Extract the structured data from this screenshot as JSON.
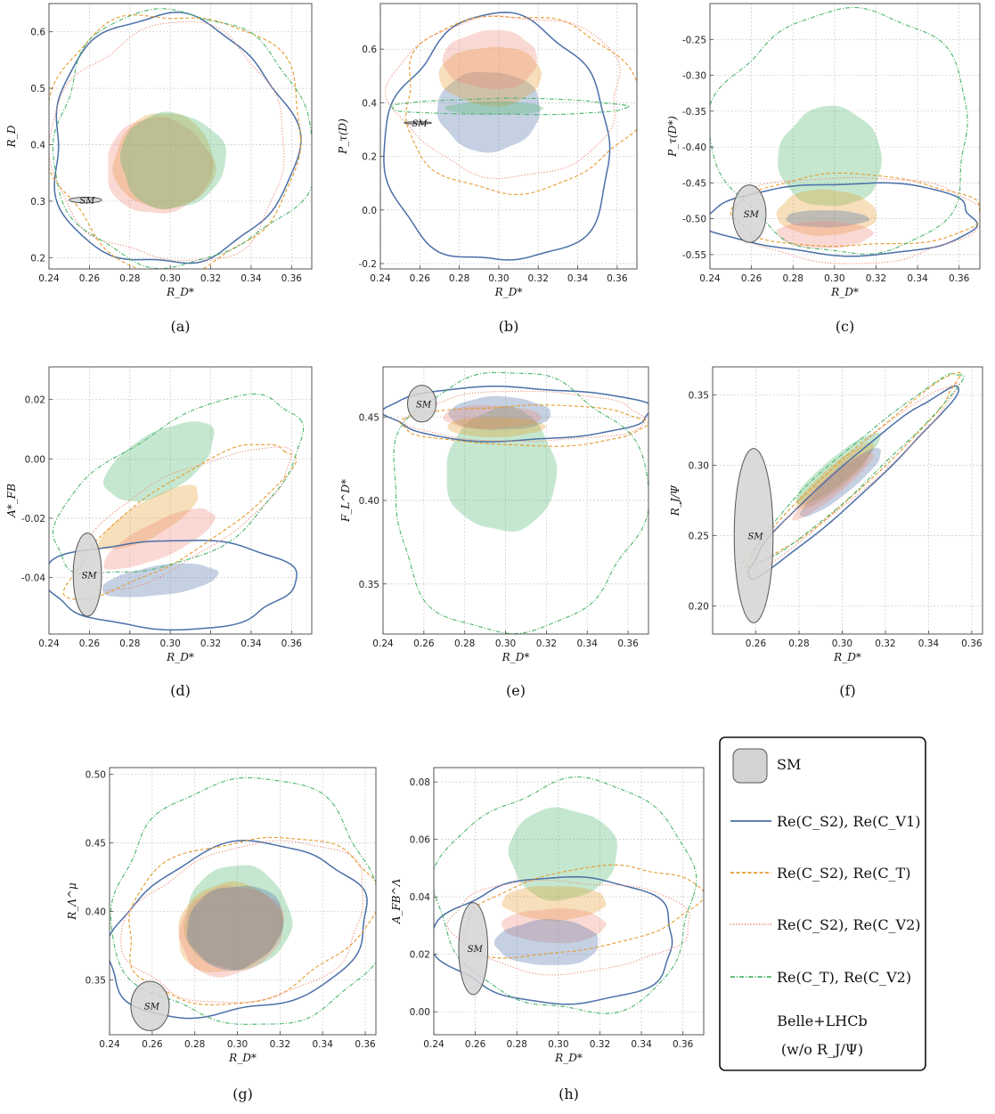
{
  "colors": {
    "sm_fill": "#d3d3d3",
    "sm_stroke": "#555555",
    "cs2_cv1": "#4a6fa8",
    "cs2_ct": "#e59a2c",
    "cs2_cv2": "#f08a78",
    "ct_cv2": "#4cb56a",
    "grid": "#c9c9c9"
  },
  "legend": {
    "items": [
      {
        "key": "sm",
        "label": "SM"
      },
      {
        "key": "cs2_cv1",
        "label": "Re(C_S2), Re(C_V1)",
        "style": "solid"
      },
      {
        "key": "cs2_ct",
        "label": "Re(C_S2), Re(C_T)",
        "style": "dashed"
      },
      {
        "key": "cs2_cv2",
        "label": "Re(C_S2), Re(C_V2)",
        "style": "dotted"
      },
      {
        "key": "ct_cv2",
        "label": "Re(C_T), Re(C_V2)",
        "style": "dashdot"
      }
    ],
    "footer_line1": "Belle+LHCb",
    "footer_line2": "(w/o R_J/Ψ)"
  },
  "chart_data": [
    {
      "id": "a",
      "type": "scatter",
      "caption": "(a)",
      "xlabel": "R_D*",
      "ylabel": "R_D",
      "xlim": [
        0.24,
        0.37
      ],
      "ylim": [
        0.18,
        0.65
      ],
      "xticks": [
        0.24,
        0.26,
        0.28,
        0.3,
        0.32,
        0.34,
        0.36
      ],
      "yticks": [
        0.2,
        0.3,
        0.4,
        0.5,
        0.6
      ],
      "sm": {
        "x": 0.258,
        "y": 0.302,
        "rx": 0.008,
        "ry": 0.005
      },
      "regions": [
        {
          "series": "cs2_ct",
          "x": 0.297,
          "y": 0.37,
          "rx": 0.025,
          "ry": 0.085
        },
        {
          "series": "cs2_cv2",
          "x": 0.294,
          "y": 0.362,
          "rx": 0.026,
          "ry": 0.085
        },
        {
          "series": "ct_cv2",
          "x": 0.301,
          "y": 0.372,
          "rx": 0.026,
          "ry": 0.085
        }
      ],
      "contours": [
        {
          "series": "cs2_cv1",
          "x": 0.3,
          "y": 0.405,
          "rx": 0.06,
          "ry": 0.22
        },
        {
          "series": "cs2_ct",
          "x": 0.302,
          "y": 0.41,
          "rx": 0.063,
          "ry": 0.23
        },
        {
          "series": "cs2_cv2",
          "x": 0.3,
          "y": 0.4,
          "rx": 0.058,
          "ry": 0.21
        },
        {
          "series": "ct_cv2",
          "x": 0.305,
          "y": 0.41,
          "rx": 0.064,
          "ry": 0.225
        }
      ]
    },
    {
      "id": "b",
      "type": "scatter",
      "caption": "(b)",
      "xlabel": "R_D*",
      "ylabel": "P_τ(D)",
      "xlim": [
        0.24,
        0.37
      ],
      "ylim": [
        -0.22,
        0.77
      ],
      "xticks": [
        0.24,
        0.26,
        0.28,
        0.3,
        0.32,
        0.34,
        0.36
      ],
      "yticks": [
        -0.2,
        0.0,
        0.2,
        0.4,
        0.6
      ],
      "sm": {
        "x": 0.259,
        "y": 0.325,
        "rx": 0.007,
        "ry": 0.004
      },
      "regions": [
        {
          "series": "cs2_cv1",
          "x": 0.295,
          "y": 0.37,
          "rx": 0.026,
          "ry": 0.15
        },
        {
          "series": "cs2_ct",
          "x": 0.296,
          "y": 0.5,
          "rx": 0.026,
          "ry": 0.11
        },
        {
          "series": "cs2_cv2",
          "x": 0.296,
          "y": 0.56,
          "rx": 0.024,
          "ry": 0.11
        },
        {
          "series": "ct_cv2",
          "x": 0.298,
          "y": 0.38,
          "rx": 0.025,
          "ry": 0.025
        }
      ],
      "contours": [
        {
          "series": "cs2_cv1",
          "x": 0.3,
          "y": 0.25,
          "rx": 0.057,
          "ry": 0.46
        },
        {
          "series": "cs2_ct",
          "x": 0.31,
          "y": 0.4,
          "rx": 0.06,
          "ry": 0.33
        },
        {
          "series": "cs2_cv2",
          "x": 0.305,
          "y": 0.43,
          "rx": 0.058,
          "ry": 0.3
        },
        {
          "series": "ct_cv2",
          "x": 0.305,
          "y": 0.385,
          "rx": 0.06,
          "ry": 0.03
        }
      ]
    },
    {
      "id": "c",
      "type": "scatter",
      "caption": "(c)",
      "xlabel": "R_D*",
      "ylabel": "P_τ(D*)",
      "xlim": [
        0.24,
        0.37
      ],
      "ylim": [
        -0.57,
        -0.2
      ],
      "xticks": [
        0.24,
        0.26,
        0.28,
        0.3,
        0.32,
        0.34,
        0.36
      ],
      "yticks": [
        -0.55,
        -0.5,
        -0.45,
        -0.4,
        -0.35,
        -0.3,
        -0.25
      ],
      "sm": {
        "x": 0.259,
        "y": -0.493,
        "rx": 0.008,
        "ry": 0.04
      },
      "regions": [
        {
          "series": "ct_cv2",
          "x": 0.298,
          "y": -0.415,
          "rx": 0.025,
          "ry": 0.07
        },
        {
          "series": "cs2_ct",
          "x": 0.296,
          "y": -0.492,
          "rx": 0.024,
          "ry": 0.032
        },
        {
          "series": "cs2_cv1",
          "x": 0.296,
          "y": -0.5,
          "rx": 0.02,
          "ry": 0.012
        },
        {
          "series": "cs2_cv2",
          "x": 0.295,
          "y": -0.522,
          "rx": 0.023,
          "ry": 0.019
        }
      ],
      "contours": [
        {
          "series": "cs2_cv1",
          "x": 0.305,
          "y": -0.5,
          "rx": 0.065,
          "ry": 0.05
        },
        {
          "series": "cs2_ct",
          "x": 0.31,
          "y": -0.49,
          "rx": 0.06,
          "ry": 0.05
        },
        {
          "series": "cs2_cv2",
          "x": 0.31,
          "y": -0.5,
          "rx": 0.06,
          "ry": 0.06
        },
        {
          "series": "ct_cv2",
          "x": 0.305,
          "y": -0.38,
          "rx": 0.062,
          "ry": 0.17
        }
      ]
    },
    {
      "id": "d",
      "type": "scatter",
      "caption": "(d)",
      "xlabel": "R_D*",
      "ylabel": "A*_FB",
      "xlim": [
        0.24,
        0.37
      ],
      "ylim": [
        -0.059,
        0.031
      ],
      "xticks": [
        0.24,
        0.26,
        0.28,
        0.3,
        0.32,
        0.34,
        0.36
      ],
      "yticks": [
        -0.04,
        -0.02,
        0.0,
        0.02
      ],
      "sm": {
        "x": 0.259,
        "y": -0.039,
        "rx": 0.007,
        "ry": 0.014
      },
      "regions": [
        {
          "series": "ct_cv2",
          "x": 0.295,
          "y": -0.001,
          "rx": 0.03,
          "ry": 0.01,
          "angle": -30
        },
        {
          "series": "cs2_ct",
          "x": 0.29,
          "y": -0.02,
          "rx": 0.028,
          "ry": 0.006,
          "angle": -30
        },
        {
          "series": "cs2_cv2",
          "x": 0.295,
          "y": -0.027,
          "rx": 0.03,
          "ry": 0.006,
          "angle": -25
        },
        {
          "series": "cs2_cv1",
          "x": 0.295,
          "y": -0.041,
          "rx": 0.029,
          "ry": 0.005,
          "angle": -8
        }
      ],
      "contours": [
        {
          "series": "cs2_cv1",
          "x": 0.3,
          "y": -0.042,
          "rx": 0.062,
          "ry": 0.015
        },
        {
          "series": "cs2_ct",
          "x": 0.305,
          "y": -0.02,
          "rx": 0.065,
          "ry": 0.012,
          "angle": -33
        },
        {
          "series": "cs2_cv2",
          "x": 0.305,
          "y": -0.02,
          "rx": 0.06,
          "ry": 0.014,
          "angle": -30
        },
        {
          "series": "ct_cv2",
          "x": 0.305,
          "y": -0.01,
          "rx": 0.068,
          "ry": 0.022,
          "angle": -30
        }
      ]
    },
    {
      "id": "e",
      "type": "scatter",
      "caption": "(e)",
      "xlabel": "R_D*",
      "ylabel": "F_L^D*",
      "xlim": [
        0.24,
        0.37
      ],
      "ylim": [
        0.32,
        0.48
      ],
      "xticks": [
        0.24,
        0.26,
        0.28,
        0.3,
        0.32,
        0.34,
        0.36
      ],
      "yticks": [
        0.35,
        0.4,
        0.45
      ],
      "sm": {
        "x": 0.259,
        "y": 0.458,
        "rx": 0.007,
        "ry": 0.011
      },
      "regions": [
        {
          "series": "ct_cv2",
          "x": 0.298,
          "y": 0.418,
          "rx": 0.027,
          "ry": 0.037
        },
        {
          "series": "cs2_cv1",
          "x": 0.297,
          "y": 0.452,
          "rx": 0.025,
          "ry": 0.01
        },
        {
          "series": "cs2_cv2",
          "x": 0.293,
          "y": 0.45,
          "rx": 0.024,
          "ry": 0.007
        },
        {
          "series": "cs2_ct",
          "x": 0.295,
          "y": 0.444,
          "rx": 0.024,
          "ry": 0.006
        }
      ],
      "contours": [
        {
          "series": "cs2_cv1",
          "x": 0.305,
          "y": 0.452,
          "rx": 0.065,
          "ry": 0.016
        },
        {
          "series": "cs2_ct",
          "x": 0.31,
          "y": 0.445,
          "rx": 0.06,
          "ry": 0.012
        },
        {
          "series": "cs2_cv2",
          "x": 0.31,
          "y": 0.45,
          "rx": 0.058,
          "ry": 0.015
        },
        {
          "series": "ct_cv2",
          "x": 0.305,
          "y": 0.4,
          "rx": 0.062,
          "ry": 0.078
        }
      ]
    },
    {
      "id": "f",
      "type": "scatter",
      "caption": "(f)",
      "xlabel": "R_D*",
      "ylabel": "R_J/Ψ",
      "xlim": [
        0.24,
        0.365
      ],
      "ylim": [
        0.18,
        0.37
      ],
      "xticks": [
        0.26,
        0.28,
        0.3,
        0.32,
        0.34,
        0.36
      ],
      "yticks": [
        0.2,
        0.25,
        0.3,
        0.35
      ],
      "sm": {
        "x": 0.259,
        "y": 0.25,
        "rx": 0.009,
        "ry": 0.062
      },
      "regions": [
        {
          "series": "ct_cv2",
          "x": 0.298,
          "y": 0.297,
          "rx": 0.025,
          "ry": 0.009,
          "angle": -40
        },
        {
          "series": "cs2_ct",
          "x": 0.297,
          "y": 0.292,
          "rx": 0.023,
          "ry": 0.008,
          "angle": -40
        },
        {
          "series": "cs2_cv1",
          "x": 0.3,
          "y": 0.288,
          "rx": 0.024,
          "ry": 0.008,
          "angle": -40
        },
        {
          "series": "cs2_cv2",
          "x": 0.296,
          "y": 0.286,
          "rx": 0.024,
          "ry": 0.007,
          "angle": -40
        }
      ],
      "contours": [
        {
          "series": "cs2_cv1",
          "x": 0.303,
          "y": 0.287,
          "rx": 0.065,
          "ry": 0.012,
          "angle": -42
        },
        {
          "series": "cs2_ct",
          "x": 0.305,
          "y": 0.295,
          "rx": 0.066,
          "ry": 0.012,
          "angle": -42
        },
        {
          "series": "cs2_cv2",
          "x": 0.305,
          "y": 0.292,
          "rx": 0.065,
          "ry": 0.012,
          "angle": -42
        },
        {
          "series": "ct_cv2",
          "x": 0.305,
          "y": 0.297,
          "rx": 0.066,
          "ry": 0.013,
          "angle": -42
        }
      ]
    },
    {
      "id": "g",
      "type": "scatter",
      "caption": "(g)",
      "xlabel": "R_D*",
      "ylabel": "R_Λ^μ",
      "xlim": [
        0.24,
        0.365
      ],
      "ylim": [
        0.31,
        0.505
      ],
      "xticks": [
        0.24,
        0.26,
        0.28,
        0.3,
        0.32,
        0.34,
        0.36
      ],
      "yticks": [
        0.35,
        0.4,
        0.45,
        0.5
      ],
      "sm": {
        "x": 0.259,
        "y": 0.331,
        "rx": 0.009,
        "ry": 0.018
      },
      "regions": [
        {
          "series": "ct_cv2",
          "x": 0.3,
          "y": 0.395,
          "rx": 0.025,
          "ry": 0.038,
          "angle": -20
        },
        {
          "series": "cs2_ct",
          "x": 0.296,
          "y": 0.388,
          "rx": 0.025,
          "ry": 0.032,
          "angle": -20
        },
        {
          "series": "cs2_cv2",
          "x": 0.297,
          "y": 0.386,
          "rx": 0.025,
          "ry": 0.032,
          "angle": -20
        },
        {
          "series": "cs2_cv1",
          "x": 0.299,
          "y": 0.389,
          "rx": 0.023,
          "ry": 0.03,
          "angle": -20
        }
      ],
      "contours": [
        {
          "series": "cs2_cv1",
          "x": 0.3,
          "y": 0.385,
          "rx": 0.062,
          "ry": 0.06,
          "angle": -15
        },
        {
          "series": "cs2_ct",
          "x": 0.305,
          "y": 0.395,
          "rx": 0.06,
          "ry": 0.058,
          "angle": -15
        },
        {
          "series": "cs2_cv2",
          "x": 0.305,
          "y": 0.392,
          "rx": 0.058,
          "ry": 0.056,
          "angle": -15
        },
        {
          "series": "ct_cv2",
          "x": 0.305,
          "y": 0.405,
          "rx": 0.063,
          "ry": 0.09
        }
      ]
    },
    {
      "id": "h",
      "type": "scatter",
      "caption": "(h)",
      "xlabel": "R_D*",
      "ylabel": "A_FB^Λ",
      "xlim": [
        0.24,
        0.37
      ],
      "ylim": [
        -0.008,
        0.085
      ],
      "xticks": [
        0.24,
        0.26,
        0.28,
        0.3,
        0.32,
        0.34,
        0.36
      ],
      "yticks": [
        0.0,
        0.02,
        0.04,
        0.06,
        0.08
      ],
      "sm": {
        "x": 0.259,
        "y": 0.022,
        "rx": 0.007,
        "ry": 0.016
      },
      "regions": [
        {
          "series": "ct_cv2",
          "x": 0.302,
          "y": 0.055,
          "rx": 0.026,
          "ry": 0.016
        },
        {
          "series": "cs2_ct",
          "x": 0.298,
          "y": 0.038,
          "rx": 0.025,
          "ry": 0.006
        },
        {
          "series": "cs2_cv2",
          "x": 0.298,
          "y": 0.03,
          "rx": 0.025,
          "ry": 0.006
        },
        {
          "series": "cs2_cv1",
          "x": 0.295,
          "y": 0.024,
          "rx": 0.025,
          "ry": 0.008
        }
      ],
      "contours": [
        {
          "series": "cs2_cv1",
          "x": 0.3,
          "y": 0.025,
          "rx": 0.058,
          "ry": 0.022
        },
        {
          "series": "cs2_ct",
          "x": 0.31,
          "y": 0.035,
          "rx": 0.058,
          "ry": 0.014,
          "angle": -10
        },
        {
          "series": "cs2_cv2",
          "x": 0.305,
          "y": 0.03,
          "rx": 0.058,
          "ry": 0.016
        },
        {
          "series": "ct_cv2",
          "x": 0.305,
          "y": 0.04,
          "rx": 0.062,
          "ry": 0.04
        }
      ]
    }
  ]
}
